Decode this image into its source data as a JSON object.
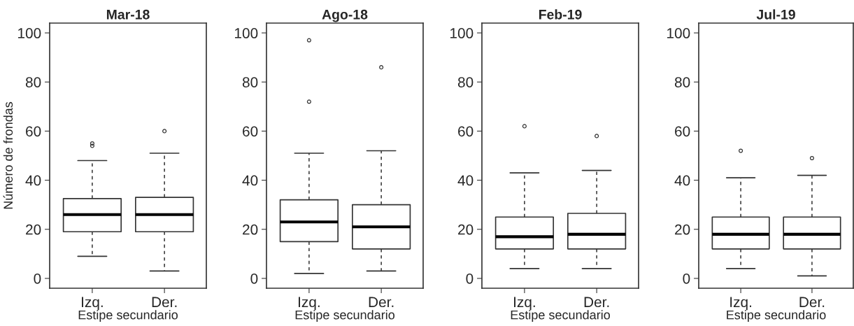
{
  "chart_data": [
    {
      "type": "box",
      "title": "Mar-18",
      "xlabel": "Estipe secundario",
      "ylabel": "Número de frondas",
      "categories": [
        "Izq.",
        "Der."
      ],
      "ylim": [
        -4,
        104
      ],
      "yticks": [
        0,
        20,
        40,
        60,
        80,
        100
      ],
      "grid": false,
      "boxes": [
        {
          "low": 9,
          "q1": 19,
          "median": 26,
          "q3": 32.5,
          "high": 48,
          "outliers": [
            54,
            55
          ]
        },
        {
          "low": 3,
          "q1": 19,
          "median": 26,
          "q3": 33,
          "high": 51,
          "outliers": [
            60
          ]
        }
      ]
    },
    {
      "type": "box",
      "title": "Ago-18",
      "xlabel": "Estipe secundario",
      "categories": [
        "Izq.",
        "Der."
      ],
      "ylim": [
        -4,
        104
      ],
      "yticks": [
        0,
        20,
        40,
        60,
        80,
        100
      ],
      "grid": false,
      "boxes": [
        {
          "low": 2,
          "q1": 15,
          "median": 23,
          "q3": 32,
          "high": 51,
          "outliers": [
            72,
            97
          ]
        },
        {
          "low": 3,
          "q1": 12,
          "median": 21,
          "q3": 30,
          "high": 52,
          "outliers": [
            86
          ]
        }
      ]
    },
    {
      "type": "box",
      "title": "Feb-19",
      "xlabel": "Estipe secundario",
      "categories": [
        "Izq.",
        "Der."
      ],
      "ylim": [
        -4,
        104
      ],
      "yticks": [
        0,
        20,
        40,
        60,
        80,
        100
      ],
      "grid": false,
      "boxes": [
        {
          "low": 4,
          "q1": 12,
          "median": 17,
          "q3": 25,
          "high": 43,
          "outliers": [
            62
          ]
        },
        {
          "low": 4,
          "q1": 12,
          "median": 18,
          "q3": 26.5,
          "high": 44,
          "outliers": [
            58
          ]
        }
      ]
    },
    {
      "type": "box",
      "title": "Jul-19",
      "xlabel": "Estipe secundario",
      "categories": [
        "Izq.",
        "Der."
      ],
      "ylim": [
        -4,
        104
      ],
      "yticks": [
        0,
        20,
        40,
        60,
        80,
        100
      ],
      "grid": false,
      "boxes": [
        {
          "low": 4,
          "q1": 12,
          "median": 18,
          "q3": 25,
          "high": 41,
          "outliers": [
            52
          ]
        },
        {
          "low": 1,
          "q1": 12,
          "median": 18,
          "q3": 25,
          "high": 42,
          "outliers": [
            49
          ]
        }
      ]
    }
  ]
}
